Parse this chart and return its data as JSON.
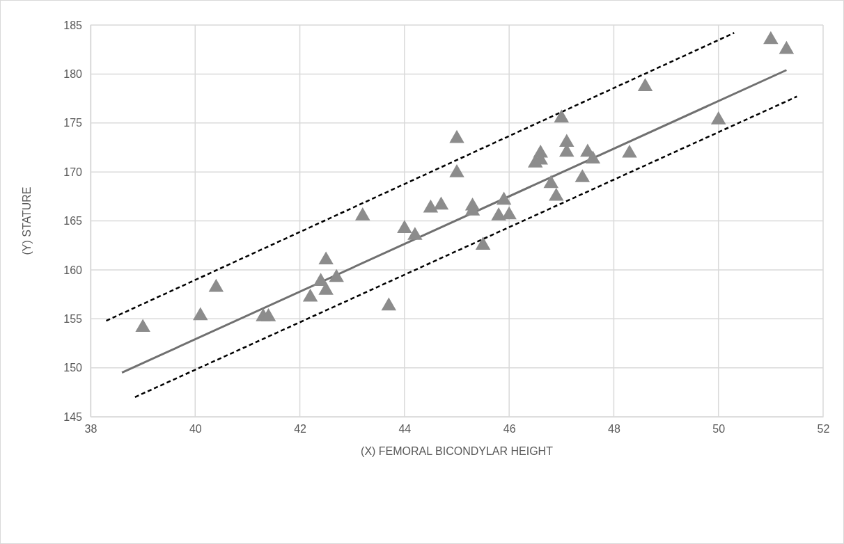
{
  "chart_data": {
    "type": "scatter",
    "xlabel": "(X) FEMORAL BICONDYLAR HEIGHT",
    "ylabel": "(Y) STATURE",
    "xlim": [
      38,
      52
    ],
    "ylim": [
      145,
      185
    ],
    "xticks": [
      38,
      40,
      42,
      44,
      46,
      48,
      50,
      52
    ],
    "yticks": [
      145,
      150,
      155,
      160,
      165,
      170,
      175,
      180,
      185
    ],
    "grid": true,
    "series": [
      {
        "marker": "triangle",
        "color": "#8c8c8c",
        "x": [
          39.0,
          40.1,
          40.4,
          41.3,
          41.4,
          42.2,
          42.4,
          42.5,
          42.5,
          42.7,
          43.2,
          43.7,
          44.0,
          44.2,
          44.5,
          44.7,
          45.0,
          45.0,
          45.3,
          45.3,
          45.5,
          45.8,
          45.9,
          46.0,
          46.5,
          46.6,
          46.6,
          46.8,
          46.9,
          47.0,
          47.1,
          47.1,
          47.4,
          47.5,
          47.6,
          48.3,
          48.6,
          50.0,
          51.0,
          51.3
        ],
        "values": [
          154.1,
          155.3,
          158.2,
          155.2,
          155.2,
          157.2,
          158.8,
          157.9,
          161.0,
          159.2,
          165.5,
          156.3,
          164.2,
          163.5,
          166.3,
          166.6,
          173.4,
          169.9,
          166.5,
          166.0,
          162.5,
          165.5,
          167.1,
          165.6,
          170.9,
          171.9,
          171.2,
          168.8,
          167.5,
          175.5,
          173.0,
          172.0,
          169.4,
          172.0,
          171.3,
          171.9,
          178.7,
          175.3,
          183.5,
          182.5
        ]
      },
      {
        "type": "line",
        "marker": "none",
        "line_style": "solid",
        "color": "#707070",
        "x": [
          38.6,
          51.3
        ],
        "values": [
          149.5,
          180.4
        ]
      },
      {
        "type": "line",
        "marker": "none",
        "line_style": "dashed",
        "color": "#000000",
        "x": [
          38.3,
          50.3
        ],
        "values": [
          154.8,
          184.2
        ]
      },
      {
        "type": "line",
        "marker": "none",
        "line_style": "dashed",
        "color": "#000000",
        "x": [
          38.85,
          51.5
        ],
        "values": [
          147.0,
          177.7
        ]
      }
    ]
  }
}
